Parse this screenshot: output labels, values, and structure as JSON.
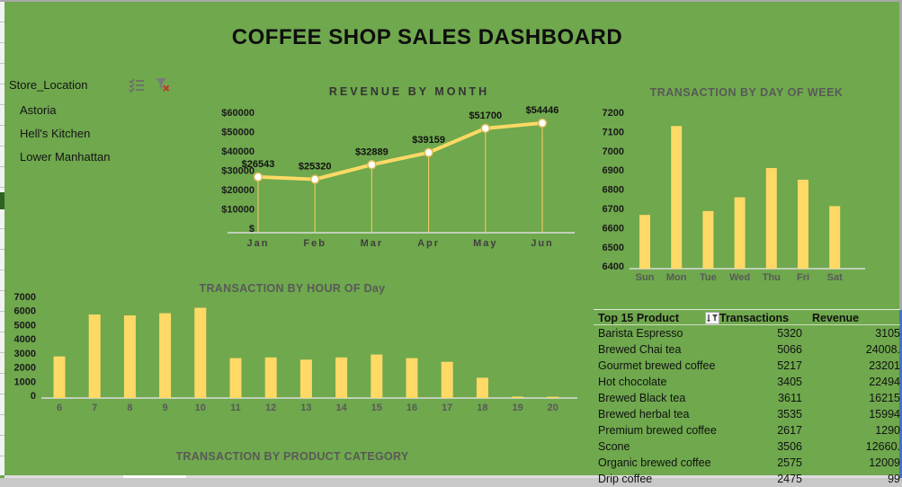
{
  "header": {
    "title": "COFFEE SHOP SALES DASHBOARD"
  },
  "slicer": {
    "header": "Store_Location",
    "icons": {
      "multi_select": "multi-select-icon",
      "clear_filter": "clear-filter-icon"
    },
    "items": [
      {
        "label": "Astoria"
      },
      {
        "label": "Hell's Kitchen"
      },
      {
        "label": "Lower Manhattan"
      }
    ]
  },
  "colors": {
    "background": "#6FA84D",
    "bar_fill": "#FFD966",
    "line_stroke": "#FFD966",
    "drop_line": "#EDC75C",
    "marker_fill": "#FFFFFF",
    "marker_stroke": "#D9BA56",
    "axis_line": "#DCDCDC",
    "right_strip_blue": "#4472C4",
    "right_strip_gray": "#A8A8A8",
    "selected_cell_green": "#2F6322"
  },
  "chart_data": [
    {
      "id": "revenue_by_month",
      "type": "line",
      "title": "REVENUE BY MONTH",
      "categories": [
        "Jan",
        "Feb",
        "Mar",
        "Apr",
        "May",
        "Jun"
      ],
      "values": [
        26543,
        25320,
        32889,
        39159,
        51700,
        54446
      ],
      "data_labels": [
        "$26543",
        "$25320",
        "$32889",
        "$39159",
        "$51700",
        "$54446"
      ],
      "y_ticks": [
        "$60000",
        "$50000",
        "$40000",
        "$30000",
        "$20000",
        "$10000",
        "$"
      ],
      "ylim": [
        0,
        60000
      ],
      "grid": false,
      "legend": "none",
      "xlabel": "",
      "ylabel": ""
    },
    {
      "id": "transaction_by_day_of_week",
      "type": "bar",
      "title": "TRANSACTION BY DAY OF WEEK",
      "categories": [
        "Sun",
        "Mon",
        "Tue",
        "Wed",
        "Thu",
        "Fri",
        "Sat"
      ],
      "values": [
        6675,
        7130,
        6695,
        6765,
        6915,
        6855,
        6720
      ],
      "y_ticks": [
        "7200",
        "7100",
        "7000",
        "6900",
        "6800",
        "6700",
        "6600",
        "6500",
        "6400"
      ],
      "ylim": [
        6400,
        7200
      ],
      "grid": false,
      "legend": "none"
    },
    {
      "id": "transaction_by_hour_of_day",
      "type": "bar",
      "title": "TRANSACTION BY HOUR OF Day",
      "categories": [
        "6",
        "7",
        "8",
        "9",
        "10",
        "11",
        "12",
        "13",
        "14",
        "15",
        "16",
        "17",
        "18",
        "19",
        "20"
      ],
      "values": [
        2870,
        5760,
        5700,
        5850,
        6225,
        2750,
        2800,
        2650,
        2800,
        3000,
        2750,
        2500,
        1400,
        100,
        90
      ],
      "y_ticks": [
        "7000",
        "6000",
        "5000",
        "4000",
        "3000",
        "2000",
        "1000",
        "0"
      ],
      "ylim": [
        0,
        7000
      ],
      "grid": false,
      "legend": "none"
    },
    {
      "id": "transaction_by_product_category",
      "type": "bar",
      "title": "TRANSACTION BY PRODUCT CATEGORY",
      "note": "chart body clipped below bottom edge of screenshot; only title visible"
    }
  ],
  "product_table": {
    "columns": [
      "Top 15 Product",
      "Transactions",
      "Revenue"
    ],
    "filter_icon": "sort-filter-icon",
    "rows": [
      {
        "product": "Barista Espresso",
        "transactions": "5320",
        "revenue_visible": "3105"
      },
      {
        "product": "Brewed Chai tea",
        "transactions": "5066",
        "revenue_visible": "24008."
      },
      {
        "product": "Gourmet brewed coffee",
        "transactions": "5217",
        "revenue_visible": "23201"
      },
      {
        "product": "Hot chocolate",
        "transactions": "3405",
        "revenue_visible": "22494"
      },
      {
        "product": "Brewed Black tea",
        "transactions": "3611",
        "revenue_visible": "16215"
      },
      {
        "product": "Brewed herbal tea",
        "transactions": "3535",
        "revenue_visible": "15994"
      },
      {
        "product": "Premium brewed coffee",
        "transactions": "2617",
        "revenue_visible": "1290"
      },
      {
        "product": "Scone",
        "transactions": "3506",
        "revenue_visible": "12660."
      },
      {
        "product": "Organic brewed coffee",
        "transactions": "2575",
        "revenue_visible": "12009"
      },
      {
        "product": "Drip coffee",
        "transactions": "2475",
        "revenue_visible": "99"
      }
    ]
  }
}
